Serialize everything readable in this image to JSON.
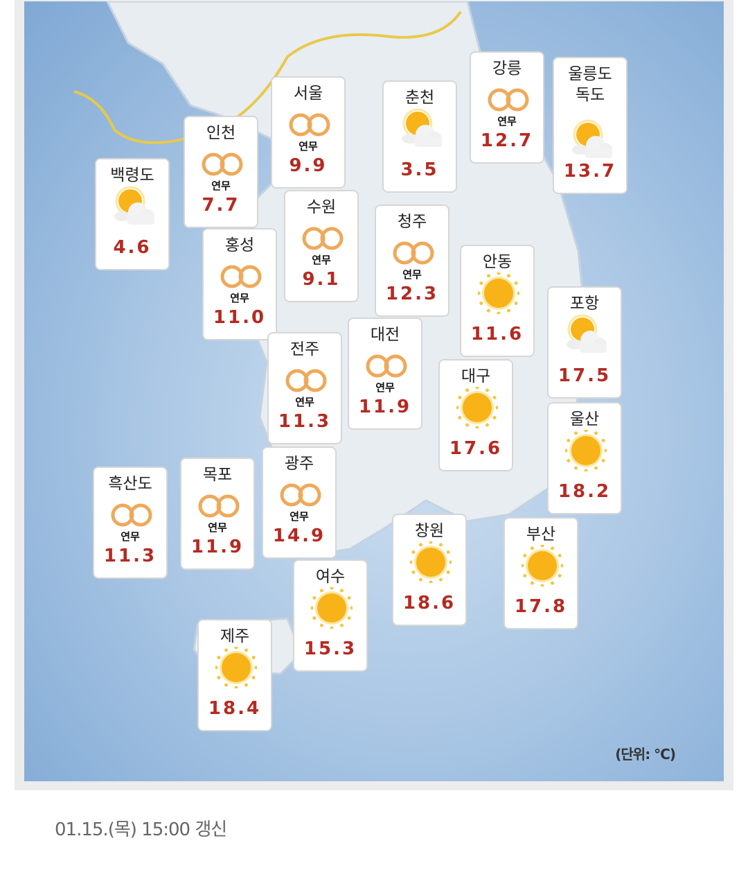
{
  "stations": [
    {
      "name": "백령도",
      "icon": "sun-cloud-icon",
      "label": "",
      "temp": "4.6"
    },
    {
      "name": "인천",
      "icon": "fog-icon",
      "label": "연무",
      "temp": "7.7"
    },
    {
      "name": "서울",
      "icon": "fog-icon",
      "label": "연무",
      "temp": "9.9"
    },
    {
      "name": "수원",
      "icon": "fog-icon",
      "label": "연무",
      "temp": "9.1"
    },
    {
      "name": "춘천",
      "icon": "sun-cloud-icon",
      "label": "",
      "temp": "3.5"
    },
    {
      "name": "강릉",
      "icon": "fog-icon",
      "label": "연무",
      "temp": "12.7"
    },
    {
      "name": "울릉도\n독도",
      "icon": "sun-cloud-icon",
      "label": "",
      "temp": "13.7"
    },
    {
      "name": "홍성",
      "icon": "fog-icon",
      "label": "연무",
      "temp": "11.0"
    },
    {
      "name": "청주",
      "icon": "fog-icon",
      "label": "연무",
      "temp": "12.3"
    },
    {
      "name": "안동",
      "icon": "sun-icon",
      "label": "",
      "temp": "11.6"
    },
    {
      "name": "포항",
      "icon": "sun-cloud-icon",
      "label": "",
      "temp": "17.5"
    },
    {
      "name": "대전",
      "icon": "fog-icon",
      "label": "연무",
      "temp": "11.9"
    },
    {
      "name": "전주",
      "icon": "fog-icon",
      "label": "연무",
      "temp": "11.3"
    },
    {
      "name": "대구",
      "icon": "sun-icon",
      "label": "",
      "temp": "17.6"
    },
    {
      "name": "울산",
      "icon": "sun-icon",
      "label": "",
      "temp": "18.2"
    },
    {
      "name": "흑산도",
      "icon": "fog-icon",
      "label": "연무",
      "temp": "11.3"
    },
    {
      "name": "목포",
      "icon": "fog-icon",
      "label": "연무",
      "temp": "11.9"
    },
    {
      "name": "광주",
      "icon": "fog-icon",
      "label": "연무",
      "temp": "14.9"
    },
    {
      "name": "창원",
      "icon": "sun-icon",
      "label": "",
      "temp": "18.6"
    },
    {
      "name": "부산",
      "icon": "sun-icon",
      "label": "",
      "temp": "17.8"
    },
    {
      "name": "여수",
      "icon": "sun-icon",
      "label": "",
      "temp": "15.3"
    },
    {
      "name": "제주",
      "icon": "sun-icon",
      "label": "",
      "temp": "18.4"
    }
  ],
  "unit": "(단위: °C)",
  "updated": "01.15.(목) 15:00 갱신",
  "colors": {
    "temp": "#b52a22",
    "fog": "#eea95a",
    "sun": "#f7b318"
  }
}
